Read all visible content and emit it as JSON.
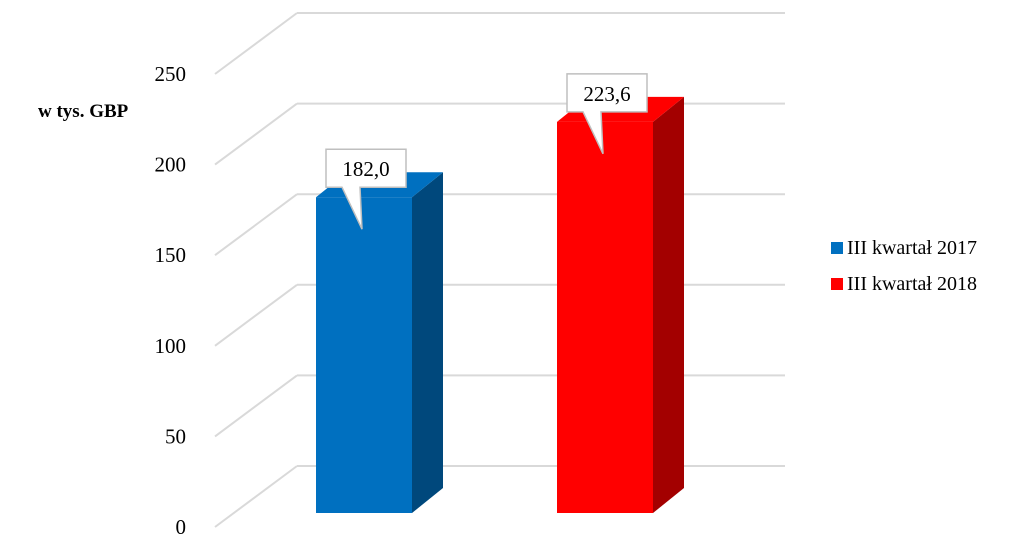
{
  "chart_data": {
    "type": "bar",
    "categories": [
      "III kwartał 2017",
      "III kwartał 2018"
    ],
    "values": [
      182.0,
      223.6
    ],
    "value_labels": [
      "182,0",
      "223,6"
    ],
    "title": "",
    "xlabel": "",
    "ylabel": "w tys. GBP",
    "ylim": [
      0,
      250
    ],
    "yticks": [
      0,
      50,
      100,
      150,
      200,
      250
    ],
    "grid": true,
    "three_d": true,
    "legend_position": "right",
    "colors": [
      "#0070C0",
      "#FF0000"
    ],
    "side_colors": [
      "#00487C",
      "#A30000"
    ]
  }
}
